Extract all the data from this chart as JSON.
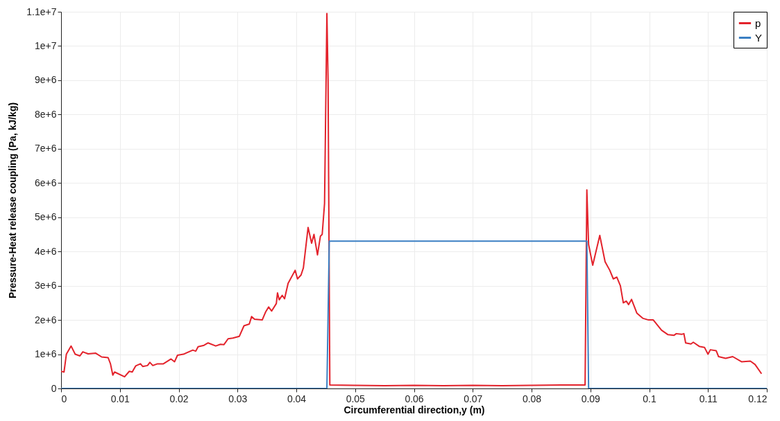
{
  "chart_data": {
    "type": "line",
    "xlabel": "Circumferential direction,y (m)",
    "ylabel": "Pressure-Heat release coupling (Pa, kJ/kg)",
    "xlim": [
      0,
      0.12
    ],
    "xticks": [
      0,
      0.01,
      0.02,
      0.03,
      0.04,
      0.05,
      0.06,
      0.07,
      0.08,
      0.09,
      0.1,
      0.11,
      0.12
    ],
    "ylim": [
      0,
      11000000
    ],
    "yticks": [
      0,
      {
        "value": 1000000,
        "label": "1e+6"
      },
      {
        "value": 2000000,
        "label": "2e+6"
      },
      {
        "value": 3000000,
        "label": "3e+6"
      },
      {
        "value": 4000000,
        "label": "4e+6"
      },
      {
        "value": 5000000,
        "label": "5e+6"
      },
      {
        "value": 6000000,
        "label": "6e+6"
      },
      {
        "value": 7000000,
        "label": "7e+6"
      },
      {
        "value": 8000000,
        "label": "8e+6"
      },
      {
        "value": 9000000,
        "label": "9e+6"
      },
      {
        "value": 10000000,
        "label": "1e+7"
      },
      {
        "value": 11000000,
        "label": "1.1e+7"
      }
    ],
    "grid": true,
    "legend": "top right",
    "line_style": "solid",
    "marker": "none",
    "series": [
      {
        "name": "p",
        "color": "#e3222b",
        "x": [
          0,
          0.0005,
          0.0009,
          0.0017,
          0.0024,
          0.0032,
          0.0037,
          0.0046,
          0.0059,
          0.0069,
          0.008,
          0.0084,
          0.0088,
          0.0091,
          0.0108,
          0.0116,
          0.0121,
          0.0127,
          0.0135,
          0.0139,
          0.0147,
          0.0151,
          0.0156,
          0.0164,
          0.0174,
          0.0187,
          0.0193,
          0.0198,
          0.0208,
          0.0224,
          0.0229,
          0.0233,
          0.0243,
          0.025,
          0.0263,
          0.0271,
          0.0277,
          0.0284,
          0.0292,
          0.0303,
          0.0311,
          0.032,
          0.0324,
          0.0329,
          0.0342,
          0.0348,
          0.0353,
          0.0358,
          0.0366,
          0.0368,
          0.0371,
          0.0376,
          0.038,
          0.0386,
          0.0398,
          0.0402,
          0.0408,
          0.0412,
          0.042,
          0.0426,
          0.043,
          0.0436,
          0.0441,
          0.0444,
          0.0448,
          0.0452,
          0.0454,
          0.0457,
          0.05,
          0.055,
          0.06,
          0.065,
          0.07,
          0.075,
          0.08,
          0.085,
          0.0891,
          0.0894,
          0.0897,
          0.0904,
          0.0916,
          0.0925,
          0.0933,
          0.0939,
          0.0945,
          0.0951,
          0.0956,
          0.0961,
          0.0965,
          0.097,
          0.0979,
          0.0989,
          0.0999,
          0.1007,
          0.1021,
          0.1032,
          0.1042,
          0.1046,
          0.1055,
          0.1059,
          0.1062,
          0.1071,
          0.1075,
          0.1085,
          0.1094,
          0.11,
          0.1104,
          0.1114,
          0.1118,
          0.113,
          0.1142,
          0.1157,
          0.1172,
          0.118,
          0.1191
        ],
        "values": [
          500000,
          480000,
          1000000,
          1240000,
          1000000,
          950000,
          1070000,
          1010000,
          1030000,
          920000,
          900000,
          720000,
          390000,
          480000,
          340000,
          500000,
          480000,
          660000,
          720000,
          640000,
          670000,
          760000,
          670000,
          720000,
          720000,
          860000,
          780000,
          970000,
          1000000,
          1120000,
          1090000,
          1220000,
          1260000,
          1330000,
          1240000,
          1290000,
          1280000,
          1450000,
          1470000,
          1520000,
          1830000,
          1880000,
          2100000,
          2020000,
          2000000,
          2240000,
          2380000,
          2260000,
          2480000,
          2790000,
          2590000,
          2720000,
          2620000,
          3070000,
          3450000,
          3200000,
          3310000,
          3520000,
          4700000,
          4240000,
          4500000,
          3900000,
          4450000,
          4500000,
          5400000,
          10950000,
          9000000,
          100000,
          90000,
          80000,
          90000,
          80000,
          90000,
          80000,
          90000,
          100000,
          100000,
          5800000,
          4200000,
          3600000,
          4470000,
          3700000,
          3450000,
          3200000,
          3250000,
          3000000,
          2500000,
          2550000,
          2450000,
          2600000,
          2200000,
          2050000,
          2000000,
          2000000,
          1700000,
          1570000,
          1550000,
          1600000,
          1580000,
          1600000,
          1330000,
          1300000,
          1350000,
          1230000,
          1200000,
          1000000,
          1130000,
          1100000,
          930000,
          880000,
          930000,
          780000,
          800000,
          700000,
          430000
        ]
      },
      {
        "name": "Y",
        "color": "#3a7fc3",
        "x": [
          0,
          0.0452,
          0.0456,
          0.0894,
          0.0897,
          0.12
        ],
        "values": [
          0,
          0,
          4300000,
          4300000,
          0,
          0
        ]
      }
    ]
  }
}
